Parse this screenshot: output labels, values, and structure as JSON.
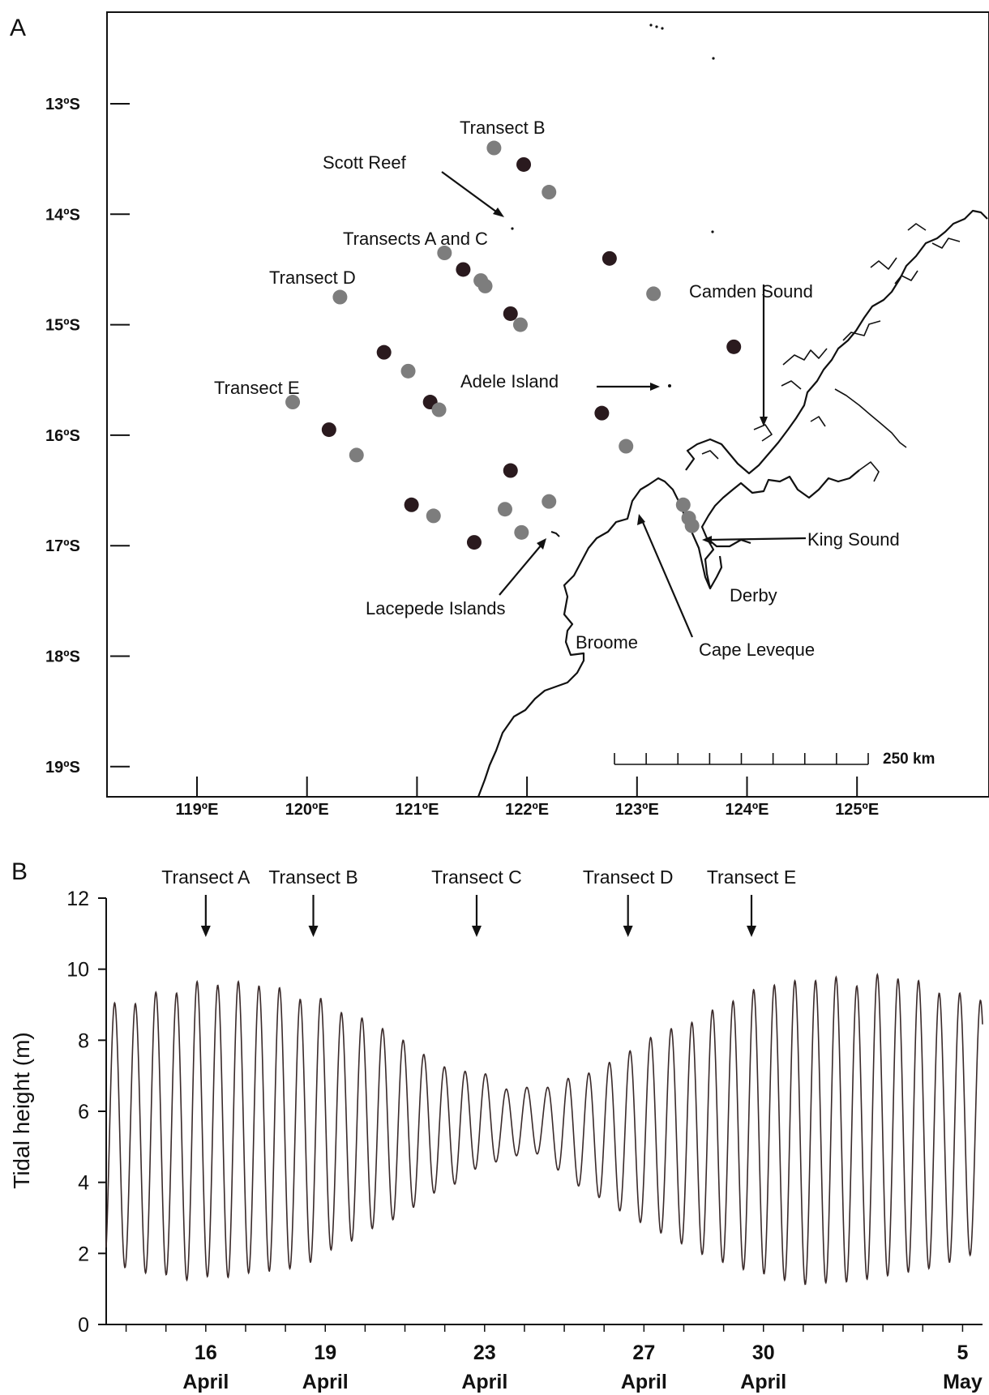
{
  "panel_a": {
    "letter": "A",
    "lat_ticks": [
      {
        "lat": -13,
        "label": "13ºS"
      },
      {
        "lat": -14,
        "label": "14ºS"
      },
      {
        "lat": -15,
        "label": "15ºS"
      },
      {
        "lat": -16,
        "label": "16ºS"
      },
      {
        "lat": -17,
        "label": "17ºS"
      },
      {
        "lat": -18,
        "label": "18ºS"
      },
      {
        "lat": -19,
        "label": "19ºS"
      }
    ],
    "lon_ticks": [
      {
        "lon": 119,
        "label": "119ºE"
      },
      {
        "lon": 120,
        "label": "120ºE"
      },
      {
        "lon": 121,
        "label": "121ºE"
      },
      {
        "lon": 122,
        "label": "122ºE"
      },
      {
        "lon": 123,
        "label": "123ºE"
      },
      {
        "lon": 124,
        "label": "124ºE"
      },
      {
        "lon": 125,
        "label": "125ºE"
      }
    ],
    "scale_bar": {
      "label": "250 km"
    },
    "places": [
      {
        "key": "transect-b",
        "text": "Transect B"
      },
      {
        "key": "scott-reef",
        "text": "Scott Reef"
      },
      {
        "key": "transects-a-c",
        "text": "Transects A and C"
      },
      {
        "key": "transect-d",
        "text": "Transect D"
      },
      {
        "key": "camden-sound",
        "text": "Camden Sound"
      },
      {
        "key": "transect-e",
        "text": "Transect E"
      },
      {
        "key": "adele-island",
        "text": "Adele Island"
      },
      {
        "key": "king-sound",
        "text": "King Sound"
      },
      {
        "key": "derby",
        "text": "Derby"
      },
      {
        "key": "lacepede-islands",
        "text": "Lacepede Islands"
      },
      {
        "key": "broome",
        "text": "Broome"
      },
      {
        "key": "cape-leveque",
        "text": "Cape Leveque"
      }
    ],
    "stations": [
      {
        "lon": 121.7,
        "lat": -13.4,
        "tone": "grey"
      },
      {
        "lon": 121.97,
        "lat": -13.55,
        "tone": "dark"
      },
      {
        "lon": 122.2,
        "lat": -13.8,
        "tone": "grey"
      },
      {
        "lon": 121.25,
        "lat": -14.35,
        "tone": "grey"
      },
      {
        "lon": 121.42,
        "lat": -14.5,
        "tone": "dark"
      },
      {
        "lon": 121.58,
        "lat": -14.6,
        "tone": "grey"
      },
      {
        "lon": 121.62,
        "lat": -14.65,
        "tone": "grey"
      },
      {
        "lon": 121.85,
        "lat": -14.9,
        "tone": "dark"
      },
      {
        "lon": 121.94,
        "lat": -15.0,
        "tone": "grey"
      },
      {
        "lon": 122.75,
        "lat": -14.4,
        "tone": "dark"
      },
      {
        "lon": 123.15,
        "lat": -14.72,
        "tone": "grey"
      },
      {
        "lon": 123.88,
        "lat": -15.2,
        "tone": "dark"
      },
      {
        "lon": 120.3,
        "lat": -14.75,
        "tone": "grey"
      },
      {
        "lon": 120.7,
        "lat": -15.25,
        "tone": "dark"
      },
      {
        "lon": 120.92,
        "lat": -15.42,
        "tone": "grey"
      },
      {
        "lon": 121.12,
        "lat": -15.7,
        "tone": "dark"
      },
      {
        "lon": 121.2,
        "lat": -15.77,
        "tone": "grey"
      },
      {
        "lon": 122.68,
        "lat": -15.8,
        "tone": "dark"
      },
      {
        "lon": 122.9,
        "lat": -16.1,
        "tone": "grey"
      },
      {
        "lon": 119.87,
        "lat": -15.7,
        "tone": "grey"
      },
      {
        "lon": 120.2,
        "lat": -15.95,
        "tone": "dark"
      },
      {
        "lon": 120.45,
        "lat": -16.18,
        "tone": "grey"
      },
      {
        "lon": 121.85,
        "lat": -16.32,
        "tone": "dark"
      },
      {
        "lon": 120.95,
        "lat": -16.63,
        "tone": "dark"
      },
      {
        "lon": 121.15,
        "lat": -16.73,
        "tone": "grey"
      },
      {
        "lon": 121.8,
        "lat": -16.67,
        "tone": "grey"
      },
      {
        "lon": 122.2,
        "lat": -16.6,
        "tone": "grey"
      },
      {
        "lon": 121.95,
        "lat": -16.88,
        "tone": "grey"
      },
      {
        "lon": 121.52,
        "lat": -16.97,
        "tone": "dark"
      },
      {
        "lon": 123.42,
        "lat": -16.63,
        "tone": "grey"
      },
      {
        "lon": 123.47,
        "lat": -16.75,
        "tone": "grey"
      },
      {
        "lon": 123.5,
        "lat": -16.82,
        "tone": "grey"
      }
    ],
    "colors": {
      "station_dark": "#2a1a1e",
      "station_grey": "#7d7d7d",
      "coast": "#111111"
    }
  },
  "panel_b": {
    "letter": "B",
    "chart_data": {
      "type": "line",
      "ylabel": "Tidal height (m)",
      "ylim": [
        0,
        12
      ],
      "yticks": [
        0,
        2,
        4,
        6,
        8,
        10,
        12
      ],
      "xlim_days": [
        "2020-04-13T12:00",
        "2020-05-05T12:00"
      ],
      "x_major_labels": [
        {
          "day": "2020-04-16",
          "line1": "16",
          "line2": "April"
        },
        {
          "day": "2020-04-19",
          "line1": "19",
          "line2": "April"
        },
        {
          "day": "2020-04-23",
          "line1": "23",
          "line2": "April"
        },
        {
          "day": "2020-04-27",
          "line1": "27",
          "line2": "April"
        },
        {
          "day": "2020-04-30",
          "line1": "30",
          "line2": "April"
        },
        {
          "day": "2020-05-05",
          "line1": "5",
          "line2": "May"
        }
      ],
      "transect_markers": [
        {
          "label": "Transect A",
          "day": "2020-04-16"
        },
        {
          "label": "Transect B",
          "day": "2020-04-18.7"
        },
        {
          "label": "Transect C",
          "day": "2020-04-22.8"
        },
        {
          "label": "Transect D",
          "day": "2020-04-26.6"
        },
        {
          "label": "Transect E",
          "day": "2020-04-29.7"
        }
      ],
      "series": [
        {
          "highs": [
            9.1,
            8.9,
            9.4,
            9.2,
            9.7,
            9.5,
            9.7,
            9.5,
            9.6,
            9.1,
            9.3,
            8.8,
            8.7,
            8.4,
            8.1,
            7.7,
            7.3,
            7.1,
            7.2,
            6.6,
            6.7,
            6.6,
            6.9,
            7.0,
            7.3,
            7.6,
            8.0,
            8.3,
            8.4,
            8.8,
            9.0,
            9.4,
            9.5,
            9.7,
            9.6,
            9.9,
            9.4,
            9.9,
            9.7,
            9.8,
            9.3,
            9.4,
            9.1,
            9.2,
            8.9,
            9.1,
            8.6,
            8.5,
            8.7,
            8.3,
            8.6
          ],
          "lows": [
            1.6,
            1.6,
            1.4,
            1.4,
            1.2,
            1.4,
            1.3,
            1.5,
            1.5,
            1.6,
            1.8,
            2.2,
            2.4,
            2.8,
            3.0,
            3.4,
            3.8,
            4.0,
            4.5,
            4.6,
            4.8,
            4.8,
            4.2,
            3.8,
            3.5,
            3.1,
            2.8,
            2.5,
            2.2,
            1.9,
            1.7,
            1.5,
            1.4,
            1.2,
            1.1,
            1.2,
            1.2,
            1.3,
            1.4,
            1.5,
            1.6,
            1.8,
            2.0,
            2.2,
            2.4,
            2.6,
            2.7,
            2.8,
            2.9,
            3.0,
            3.1
          ]
        }
      ]
    }
  }
}
